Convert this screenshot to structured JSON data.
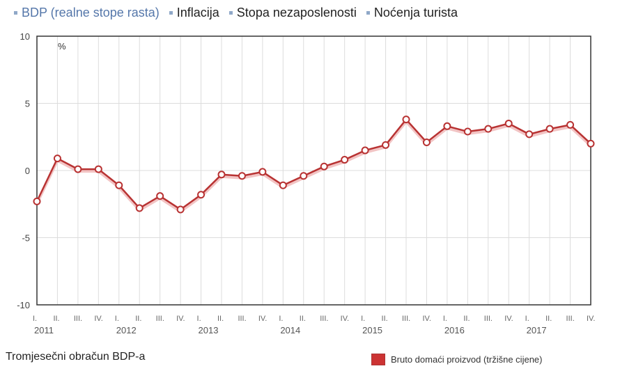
{
  "tabs": [
    {
      "label": "BDP (realne stope rasta)",
      "active": true
    },
    {
      "label": "Inflacija",
      "active": false
    },
    {
      "label": "Stopa nezaposlenosti",
      "active": false
    },
    {
      "label": "Noćenja turista",
      "active": false
    }
  ],
  "footer_title": "Tromjesečni obračun BDP-a",
  "chart_data": {
    "type": "line",
    "ylabel": "%",
    "ylim": [
      -10,
      10
    ],
    "yticks": [
      10,
      5,
      0,
      -5,
      -10
    ],
    "grid": true,
    "legend_placement": "bottom-right",
    "quarter_labels": [
      "I.",
      "II.",
      "III.",
      "IV."
    ],
    "years": [
      "2011",
      "2012",
      "2013",
      "2014",
      "2015",
      "2016",
      "2017"
    ],
    "series": [
      {
        "name": "Bruto domaći proizvod (tržišne cijene)",
        "color": "#b83232",
        "values": [
          -2.3,
          0.9,
          0.1,
          0.1,
          -1.1,
          -2.8,
          -1.9,
          -2.9,
          -1.8,
          -0.3,
          -0.4,
          -0.1,
          -1.1,
          -0.4,
          0.3,
          0.8,
          1.5,
          1.9,
          3.8,
          2.1,
          3.3,
          2.9,
          3.1,
          3.5,
          2.7,
          3.1,
          3.4,
          2.0
        ]
      }
    ]
  }
}
